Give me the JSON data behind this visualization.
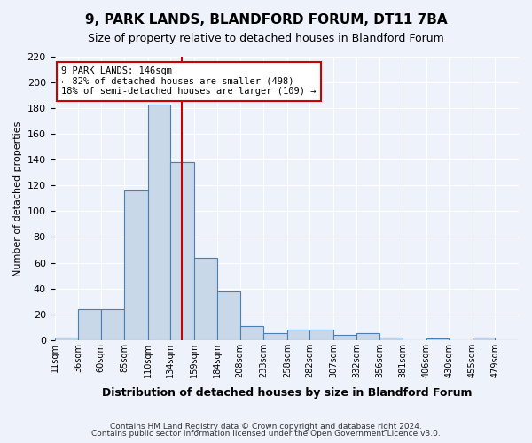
{
  "title": "9, PARK LANDS, BLANDFORD FORUM, DT11 7BA",
  "subtitle": "Size of property relative to detached houses in Blandford Forum",
  "xlabel": "Distribution of detached houses by size in Blandford Forum",
  "ylabel": "Number of detached properties",
  "footnote1": "Contains HM Land Registry data © Crown copyright and database right 2024.",
  "footnote2": "Contains public sector information licensed under the Open Government Licence v3.0.",
  "annotation_line1": "9 PARK LANDS: 146sqm",
  "annotation_line2": "← 82% of detached houses are smaller (498)",
  "annotation_line3": "18% of semi-detached houses are larger (109) →",
  "property_size": 146,
  "bar_edges": [
    11,
    36,
    60,
    85,
    110,
    134,
    159,
    184,
    208,
    233,
    258,
    282,
    307,
    332,
    356,
    381,
    406,
    430,
    455,
    479,
    504
  ],
  "bar_heights": [
    2,
    24,
    24,
    116,
    183,
    138,
    64,
    38,
    11,
    5,
    8,
    8,
    4,
    5,
    2,
    0,
    1,
    0,
    2,
    0
  ],
  "bar_color": "#c8d8e8",
  "bar_edge_color": "#4a7fb5",
  "vline_color": "#cc0000",
  "vline_x": 146,
  "annotation_box_color": "#cc0000",
  "background_color": "#eef2fb",
  "ylim": [
    0,
    220
  ],
  "yticks": [
    0,
    20,
    40,
    60,
    80,
    100,
    120,
    140,
    160,
    180,
    200,
    220
  ],
  "grid_color": "#ffffff"
}
